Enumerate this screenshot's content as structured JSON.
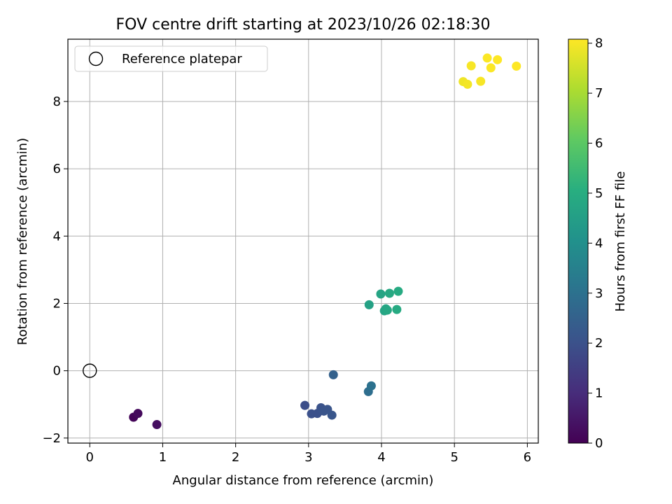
{
  "chart_data": {
    "type": "scatter",
    "title": "FOV centre drift starting at 2023/10/26 02:18:30",
    "xlabel": "Angular distance from reference (arcmin)",
    "ylabel": "Rotation from reference (arcmin)",
    "xlim": [
      -0.3,
      6.15
    ],
    "ylim": [
      -2.15,
      9.85
    ],
    "xticks": [
      0,
      1,
      2,
      3,
      4,
      5,
      6
    ],
    "yticks": [
      -2,
      0,
      2,
      4,
      6,
      8
    ],
    "grid": true,
    "legend": {
      "placement": "top-left",
      "entries": [
        "Reference platepar"
      ]
    },
    "reference_point": {
      "x": 0,
      "y": 0
    },
    "colorbar": {
      "label": "Hours from first FF file",
      "colormap": "viridis",
      "range": [
        0,
        8.08
      ],
      "ticks": [
        0,
        1,
        2,
        3,
        4,
        5,
        6,
        7,
        8
      ]
    },
    "points": [
      {
        "x": 0.6,
        "y": -1.38,
        "c": 0.1
      },
      {
        "x": 0.66,
        "y": -1.27,
        "c": 0.2
      },
      {
        "x": 0.92,
        "y": -1.6,
        "c": 0.3
      },
      {
        "x": 2.95,
        "y": -1.03,
        "c": 1.9
      },
      {
        "x": 3.04,
        "y": -1.28,
        "c": 2.0
      },
      {
        "x": 3.12,
        "y": -1.27,
        "c": 2.0
      },
      {
        "x": 3.17,
        "y": -1.1,
        "c": 2.05
      },
      {
        "x": 3.21,
        "y": -1.2,
        "c": 2.1
      },
      {
        "x": 3.26,
        "y": -1.15,
        "c": 2.1
      },
      {
        "x": 3.32,
        "y": -1.32,
        "c": 2.15
      },
      {
        "x": 3.34,
        "y": -0.12,
        "c": 2.5
      },
      {
        "x": 3.82,
        "y": -0.62,
        "c": 2.9
      },
      {
        "x": 3.86,
        "y": -0.45,
        "c": 3.0
      },
      {
        "x": 3.83,
        "y": 1.96,
        "c": 4.6
      },
      {
        "x": 3.99,
        "y": 2.28,
        "c": 4.7
      },
      {
        "x": 4.04,
        "y": 1.78,
        "c": 4.7
      },
      {
        "x": 4.06,
        "y": 1.84,
        "c": 4.75
      },
      {
        "x": 4.08,
        "y": 1.8,
        "c": 4.8
      },
      {
        "x": 4.11,
        "y": 2.3,
        "c": 4.85
      },
      {
        "x": 4.21,
        "y": 1.82,
        "c": 4.9
      },
      {
        "x": 4.23,
        "y": 2.36,
        "c": 4.9
      },
      {
        "x": 5.12,
        "y": 8.59,
        "c": 7.9
      },
      {
        "x": 5.18,
        "y": 8.51,
        "c": 7.95
      },
      {
        "x": 5.23,
        "y": 9.06,
        "c": 8.0
      },
      {
        "x": 5.36,
        "y": 8.6,
        "c": 8.0
      },
      {
        "x": 5.45,
        "y": 9.29,
        "c": 8.05
      },
      {
        "x": 5.5,
        "y": 9.0,
        "c": 8.05
      },
      {
        "x": 5.59,
        "y": 9.24,
        "c": 8.08
      },
      {
        "x": 5.85,
        "y": 9.05,
        "c": 8.08
      }
    ]
  }
}
